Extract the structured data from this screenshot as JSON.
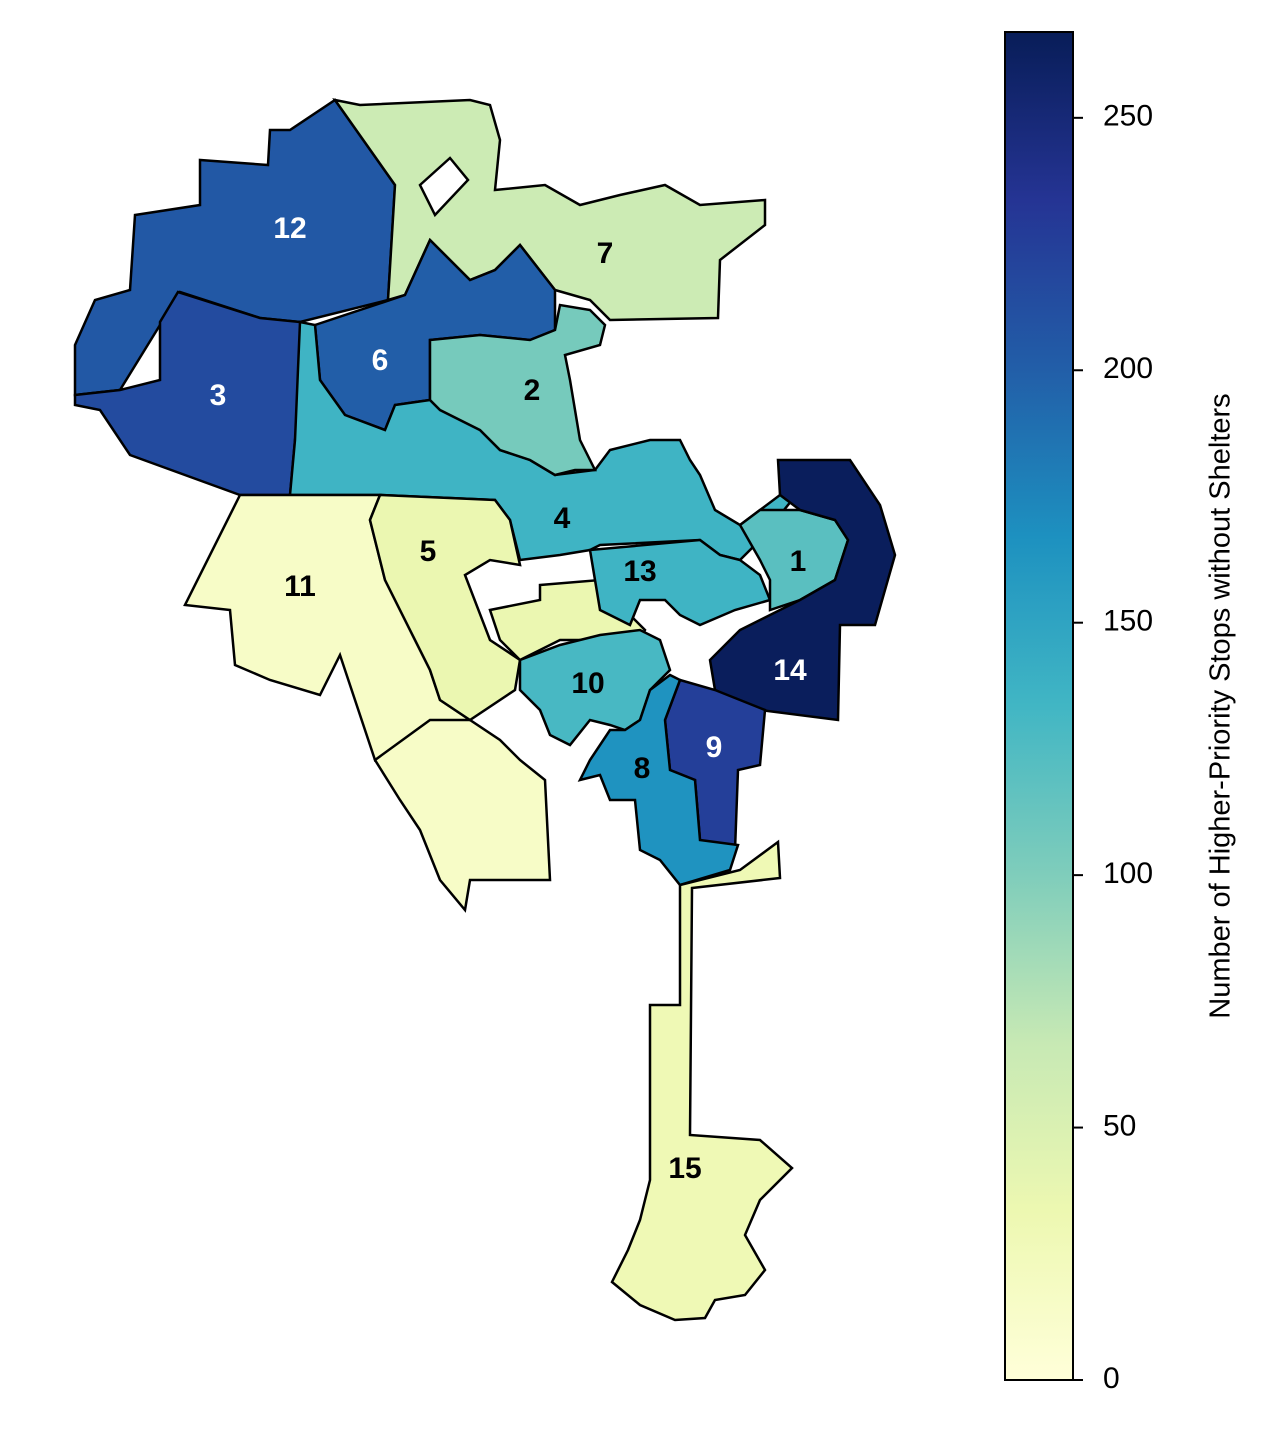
{
  "chart_data": {
    "type": "choropleth",
    "colorbar_label": "Number of Higher-Priority Stops without Shelters",
    "colormap": [
      "#ffffd9",
      "#edf8b1",
      "#c7e9b4",
      "#7fcdbb",
      "#41b6c4",
      "#1d91c0",
      "#225ea8",
      "#253494",
      "#081d58"
    ],
    "clim": [
      0,
      267
    ],
    "cticks": [
      0,
      50,
      100,
      150,
      200,
      250
    ],
    "districts": [
      {
        "name": "12",
        "value": 205
      },
      {
        "name": "7",
        "value": 62
      },
      {
        "name": "3",
        "value": 215
      },
      {
        "name": "6",
        "value": 200
      },
      {
        "name": "4",
        "value": 135
      },
      {
        "name": "2",
        "value": 105
      },
      {
        "name": "11",
        "value": 15
      },
      {
        "name": "5",
        "value": 35
      },
      {
        "name": "13",
        "value": 135
      },
      {
        "name": "1",
        "value": 120
      },
      {
        "name": "14",
        "value": 265
      },
      {
        "name": "10",
        "value": 130
      },
      {
        "name": "9",
        "value": 225
      },
      {
        "name": "8",
        "value": 165
      },
      {
        "name": "15",
        "value": 30
      }
    ]
  }
}
